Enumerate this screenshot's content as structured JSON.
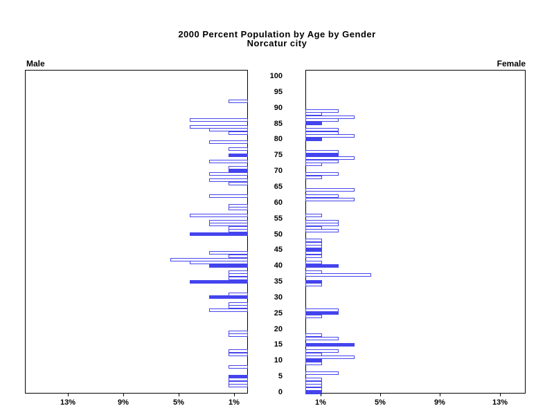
{
  "title": {
    "line1": "2000 Percent Population by Age by Gender",
    "line2": "Norcatur city"
  },
  "panels": {
    "male": {
      "label": "Male"
    },
    "female": {
      "label": "Female"
    }
  },
  "colors": {
    "bar_blue": "#4444ee",
    "axis_black": "#000000",
    "background": "#ffffff"
  },
  "chart_data": {
    "type": "bar",
    "variant": "population-pyramid",
    "title": "2000 Percent Population by Age by Gender",
    "subtitle": "Norcatur city",
    "legend": "none",
    "grid": false,
    "note": "solid bars mark ages divisible by 5; open bars are other single ages; length = percent of that gender's population",
    "age_axis": {
      "min": 0,
      "max": 100,
      "tick_step": 5,
      "tick_labels": [
        "100",
        "95",
        "90",
        "85",
        "80",
        "75",
        "70",
        "65",
        "60",
        "55",
        "50",
        "45",
        "40",
        "35",
        "30",
        "25",
        "20",
        "15",
        "10",
        "5",
        "0"
      ]
    },
    "pct_axis": {
      "min": 0,
      "max_visible": 16,
      "male_tick_labels": [
        "13%",
        "9%",
        "5%",
        "1%"
      ],
      "female_tick_labels": [
        "1%",
        "5%",
        "9%",
        "13%"
      ],
      "tick_values": [
        13,
        9,
        5,
        1
      ]
    },
    "series": [
      {
        "name": "Male",
        "side": "left",
        "bars": [
          {
            "age": 92,
            "pct": 1.4,
            "solid": false
          },
          {
            "age": 86,
            "pct": 4.2,
            "solid": false
          },
          {
            "age": 84,
            "pct": 4.2,
            "solid": false
          },
          {
            "age": 83,
            "pct": 2.8,
            "solid": false
          },
          {
            "age": 82,
            "pct": 1.4,
            "solid": false
          },
          {
            "age": 79,
            "pct": 2.8,
            "solid": false
          },
          {
            "age": 77,
            "pct": 1.4,
            "solid": false
          },
          {
            "age": 75,
            "pct": 1.4,
            "solid": true
          },
          {
            "age": 73,
            "pct": 2.8,
            "solid": false
          },
          {
            "age": 71,
            "pct": 1.4,
            "solid": false
          },
          {
            "age": 70,
            "pct": 1.4,
            "solid": true
          },
          {
            "age": 69,
            "pct": 2.8,
            "solid": false
          },
          {
            "age": 67,
            "pct": 2.8,
            "solid": false
          },
          {
            "age": 66,
            "pct": 1.4,
            "solid": false
          },
          {
            "age": 62,
            "pct": 2.8,
            "solid": false
          },
          {
            "age": 59,
            "pct": 1.4,
            "solid": false
          },
          {
            "age": 58,
            "pct": 1.4,
            "solid": false
          },
          {
            "age": 56,
            "pct": 4.2,
            "solid": false
          },
          {
            "age": 54,
            "pct": 2.8,
            "solid": false
          },
          {
            "age": 53,
            "pct": 2.8,
            "solid": false
          },
          {
            "age": 52,
            "pct": 1.4,
            "solid": false
          },
          {
            "age": 51,
            "pct": 1.4,
            "solid": false
          },
          {
            "age": 50,
            "pct": 4.2,
            "solid": true
          },
          {
            "age": 44,
            "pct": 2.8,
            "solid": false
          },
          {
            "age": 43,
            "pct": 1.4,
            "solid": false
          },
          {
            "age": 42,
            "pct": 5.6,
            "solid": false
          },
          {
            "age": 41,
            "pct": 4.2,
            "solid": false
          },
          {
            "age": 40,
            "pct": 2.8,
            "solid": true
          },
          {
            "age": 38,
            "pct": 1.4,
            "solid": false
          },
          {
            "age": 37,
            "pct": 1.4,
            "solid": false
          },
          {
            "age": 36,
            "pct": 1.4,
            "solid": false
          },
          {
            "age": 35,
            "pct": 4.2,
            "solid": true
          },
          {
            "age": 31,
            "pct": 1.4,
            "solid": false
          },
          {
            "age": 30,
            "pct": 2.8,
            "solid": true
          },
          {
            "age": 28,
            "pct": 1.4,
            "solid": false
          },
          {
            "age": 27,
            "pct": 1.4,
            "solid": false
          },
          {
            "age": 26,
            "pct": 2.8,
            "solid": false
          },
          {
            "age": 19,
            "pct": 1.4,
            "solid": false
          },
          {
            "age": 18,
            "pct": 1.4,
            "solid": false
          },
          {
            "age": 13,
            "pct": 1.4,
            "solid": false
          },
          {
            "age": 12,
            "pct": 1.4,
            "solid": false
          },
          {
            "age": 8,
            "pct": 1.4,
            "solid": false
          },
          {
            "age": 5,
            "pct": 1.4,
            "solid": true
          },
          {
            "age": 4,
            "pct": 1.4,
            "solid": false
          },
          {
            "age": 3,
            "pct": 1.4,
            "solid": false
          },
          {
            "age": 2,
            "pct": 1.4,
            "solid": false
          }
        ]
      },
      {
        "name": "Female",
        "side": "right",
        "bars": [
          {
            "age": 89,
            "pct": 2.2,
            "solid": false
          },
          {
            "age": 88,
            "pct": 1.1,
            "solid": false
          },
          {
            "age": 87,
            "pct": 3.3,
            "solid": false
          },
          {
            "age": 86,
            "pct": 2.2,
            "solid": false
          },
          {
            "age": 85,
            "pct": 1.1,
            "solid": true
          },
          {
            "age": 83,
            "pct": 2.2,
            "solid": false
          },
          {
            "age": 82,
            "pct": 2.2,
            "solid": false
          },
          {
            "age": 81,
            "pct": 3.3,
            "solid": false
          },
          {
            "age": 80,
            "pct": 1.1,
            "solid": true
          },
          {
            "age": 76,
            "pct": 2.2,
            "solid": false
          },
          {
            "age": 75,
            "pct": 2.2,
            "solid": true
          },
          {
            "age": 74,
            "pct": 3.3,
            "solid": false
          },
          {
            "age": 73,
            "pct": 2.2,
            "solid": false
          },
          {
            "age": 72,
            "pct": 1.1,
            "solid": false
          },
          {
            "age": 69,
            "pct": 2.2,
            "solid": false
          },
          {
            "age": 68,
            "pct": 1.1,
            "solid": false
          },
          {
            "age": 64,
            "pct": 3.3,
            "solid": false
          },
          {
            "age": 62,
            "pct": 2.2,
            "solid": false
          },
          {
            "age": 61,
            "pct": 3.3,
            "solid": false
          },
          {
            "age": 56,
            "pct": 1.1,
            "solid": false
          },
          {
            "age": 54,
            "pct": 2.2,
            "solid": false
          },
          {
            "age": 53,
            "pct": 2.2,
            "solid": false
          },
          {
            "age": 52,
            "pct": 1.1,
            "solid": false
          },
          {
            "age": 51,
            "pct": 2.2,
            "solid": false
          },
          {
            "age": 48,
            "pct": 1.1,
            "solid": false
          },
          {
            "age": 47,
            "pct": 1.1,
            "solid": false
          },
          {
            "age": 46,
            "pct": 1.1,
            "solid": false
          },
          {
            "age": 45,
            "pct": 1.1,
            "solid": true
          },
          {
            "age": 44,
            "pct": 1.1,
            "solid": false
          },
          {
            "age": 43,
            "pct": 1.1,
            "solid": false
          },
          {
            "age": 41,
            "pct": 1.1,
            "solid": false
          },
          {
            "age": 40,
            "pct": 2.2,
            "solid": true
          },
          {
            "age": 38,
            "pct": 1.1,
            "solid": false
          },
          {
            "age": 37,
            "pct": 4.4,
            "solid": false
          },
          {
            "age": 35,
            "pct": 1.1,
            "solid": true
          },
          {
            "age": 34,
            "pct": 1.1,
            "solid": false
          },
          {
            "age": 26,
            "pct": 2.2,
            "solid": false
          },
          {
            "age": 25,
            "pct": 2.2,
            "solid": true
          },
          {
            "age": 24,
            "pct": 1.1,
            "solid": false
          },
          {
            "age": 18,
            "pct": 1.1,
            "solid": false
          },
          {
            "age": 17,
            "pct": 2.2,
            "solid": false
          },
          {
            "age": 15,
            "pct": 3.3,
            "solid": true
          },
          {
            "age": 13,
            "pct": 2.2,
            "solid": false
          },
          {
            "age": 12,
            "pct": 1.1,
            "solid": false
          },
          {
            "age": 11,
            "pct": 3.3,
            "solid": false
          },
          {
            "age": 10,
            "pct": 1.1,
            "solid": true
          },
          {
            "age": 9,
            "pct": 1.1,
            "solid": false
          },
          {
            "age": 6,
            "pct": 2.2,
            "solid": false
          },
          {
            "age": 4,
            "pct": 1.1,
            "solid": false
          },
          {
            "age": 3,
            "pct": 1.1,
            "solid": false
          },
          {
            "age": 2,
            "pct": 1.1,
            "solid": false
          },
          {
            "age": 1,
            "pct": 1.1,
            "solid": false
          },
          {
            "age": 0,
            "pct": 1.1,
            "solid": true
          }
        ]
      }
    ]
  }
}
